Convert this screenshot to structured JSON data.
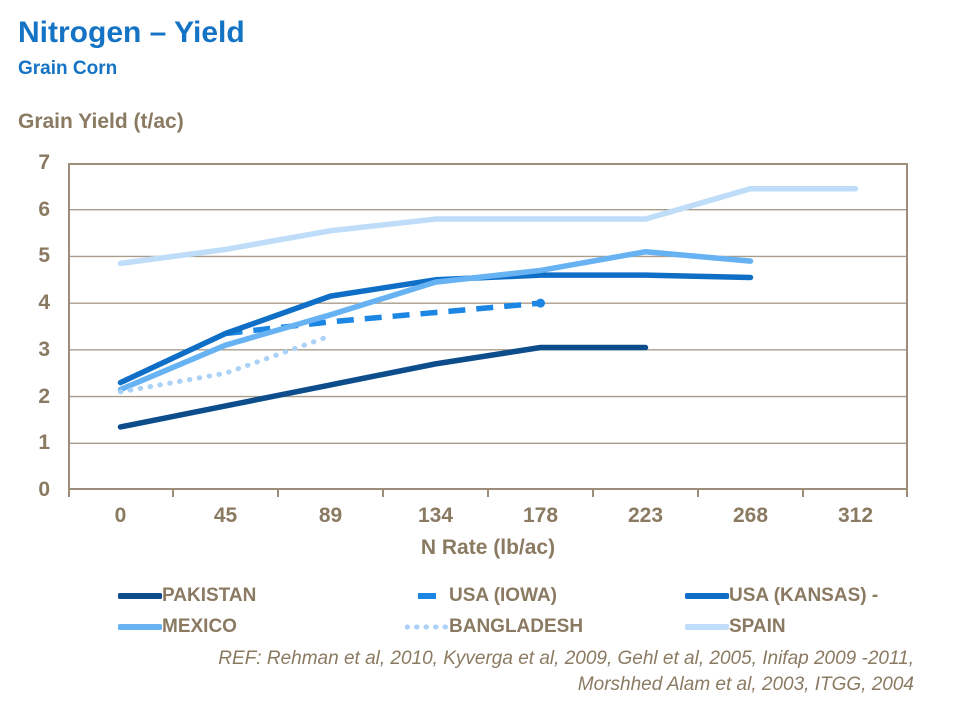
{
  "header": {
    "title": "Nitrogen – Yield",
    "subtitle": "Grain Corn"
  },
  "chart_data": {
    "type": "line",
    "ylabel": "Grain Yield (t/ac)",
    "xlabel": "N Rate (lb/ac)",
    "categories": [
      0,
      45,
      89,
      134,
      178,
      223,
      268,
      312
    ],
    "ylim": [
      0,
      7
    ],
    "yticks": [
      0,
      1,
      2,
      3,
      4,
      5,
      6,
      7
    ],
    "grid": true,
    "legend_position": "bottom",
    "series": [
      {
        "name": "PAKISTAN",
        "color": "#0D4D8C",
        "style": "solid",
        "x": [
          0,
          45,
          89,
          134,
          178,
          223
        ],
        "values": [
          1.35,
          1.8,
          2.25,
          2.7,
          3.05,
          3.05
        ]
      },
      {
        "name": "USA (IOWA)",
        "color": "#1B86E3",
        "style": "dashed",
        "x": [
          45,
          89,
          134,
          178
        ],
        "values": [
          3.35,
          3.6,
          3.8,
          4.0
        ],
        "end_marker": true
      },
      {
        "name": "USA (KANSAS) -",
        "color": "#0F6FC6",
        "style": "solid",
        "x": [
          0,
          45,
          89,
          134,
          178,
          223,
          268
        ],
        "values": [
          2.3,
          3.35,
          4.15,
          4.5,
          4.6,
          4.6,
          4.55
        ]
      },
      {
        "name": "MEXICO",
        "color": "#67B2F3",
        "style": "solid",
        "x": [
          0,
          45,
          89,
          134,
          178,
          223,
          268
        ],
        "values": [
          2.15,
          3.1,
          3.75,
          4.45,
          4.7,
          5.1,
          4.9
        ]
      },
      {
        "name": "BANGLADESH",
        "color": "#A9D2F6",
        "style": "dotted",
        "x": [
          0,
          45,
          89
        ],
        "values": [
          2.1,
          2.5,
          3.3
        ]
      },
      {
        "name": "SPAIN",
        "color": "#BFDDF9",
        "style": "solid",
        "x": [
          0,
          45,
          89,
          134,
          178,
          223,
          268,
          312
        ],
        "values": [
          4.85,
          5.15,
          5.55,
          5.8,
          5.8,
          5.8,
          6.45,
          6.45
        ]
      }
    ]
  },
  "footer": {
    "ref_line1": "REF: Rehman et al, 2010, Kyverga et al, 2009, Gehl et al, 2005, Inifap 2009 -2011,",
    "ref_line2": "Morshhed Alam et al, 2003, ITGG,  2004"
  },
  "colors": {
    "title_blue": "#1473C4",
    "axis_text": "#8B7A62",
    "plot_border": "#9C8E7B",
    "gridline": "#A99C89",
    "background": "#FFFFFF"
  }
}
